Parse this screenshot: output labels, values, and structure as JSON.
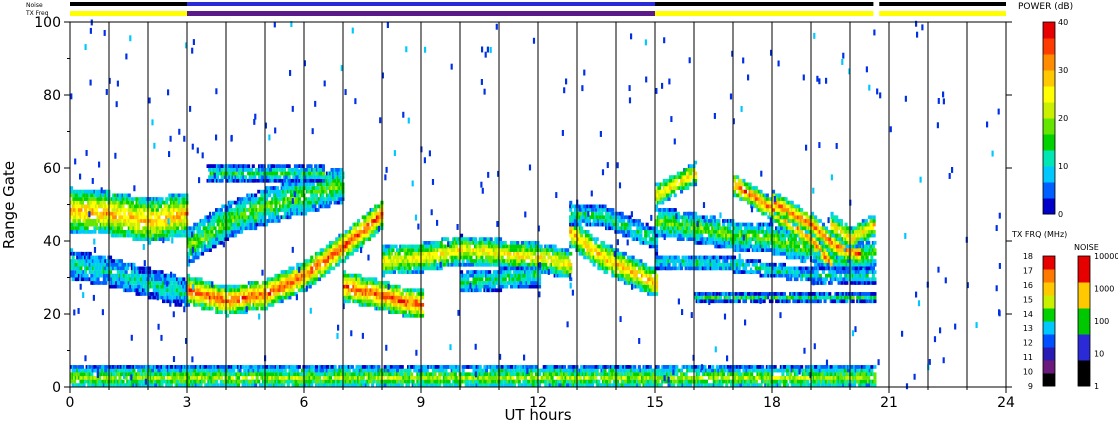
{
  "chart_data": {
    "type": "heatmap",
    "xlabel": "UT hours",
    "ylabel": "Range Gate",
    "xlim": [
      0,
      24
    ],
    "ylim": [
      0,
      100
    ],
    "x_ticks": [
      "0",
      "3",
      "6",
      "9",
      "12",
      "15",
      "18",
      "21",
      "24"
    ],
    "x_tick_values": [
      0,
      3,
      6,
      9,
      12,
      15,
      18,
      21,
      24
    ],
    "y_ticks": [
      "0",
      "20",
      "40",
      "60",
      "80",
      "100"
    ],
    "y_tick_values": [
      0,
      20,
      40,
      60,
      80,
      100
    ],
    "vertical_grid_hours": [
      1,
      2,
      3,
      4,
      5,
      6,
      7,
      8,
      9,
      10,
      11,
      12,
      13,
      14,
      15,
      16,
      17,
      18,
      19,
      20,
      21,
      22,
      23
    ],
    "strip_labels": {
      "noise": "Noise",
      "txfreq": "TX Freq"
    },
    "noise_strip": [
      {
        "start": 0,
        "end": 3,
        "color": "#000000"
      },
      {
        "start": 3,
        "end": 15,
        "color": "#2a2ad6"
      },
      {
        "start": 15,
        "end": 20.6,
        "color": "#000000"
      },
      {
        "start": 20.75,
        "end": 24,
        "color": "#000000"
      }
    ],
    "txfreq_strip": [
      {
        "start": 0,
        "end": 3,
        "color": "#ffff00"
      },
      {
        "start": 3,
        "end": 15,
        "color": "#5a1a8a"
      },
      {
        "start": 15,
        "end": 20.6,
        "color": "#ffff00"
      },
      {
        "start": 20.75,
        "end": 24,
        "color": "#ffff00"
      }
    ],
    "power_scale": {
      "label": "POWER (dB)",
      "ticks": [
        "0",
        "10",
        "20",
        "30",
        "40"
      ],
      "tick_values": [
        0,
        10,
        20,
        30,
        40
      ],
      "range": [
        0,
        40
      ],
      "colors": [
        "#0000c8",
        "#0060ff",
        "#00c8ff",
        "#00e6b4",
        "#00d200",
        "#64e600",
        "#c8f000",
        "#ffff00",
        "#ffc800",
        "#ff8c00",
        "#ff3c00",
        "#e60000"
      ]
    },
    "txfreq_scale": {
      "label": "TX FRQ (MHz)",
      "ticks": [
        "9",
        "10",
        "11",
        "12",
        "13",
        "14",
        "15",
        "16",
        "17",
        "18"
      ],
      "colors": [
        "#000000",
        "#6a1a7a",
        "#2a1ab4",
        "#0050ff",
        "#00c8ff",
        "#00d200",
        "#c8f000",
        "#ffc800",
        "#ff7800",
        "#e60000"
      ]
    },
    "noise_scale": {
      "label": "NOISE",
      "ticks": [
        "1",
        "10",
        "100",
        "1000",
        "10000"
      ],
      "colors": [
        "#000000",
        "#2a2ad6",
        "#00c800",
        "#ffc800",
        "#e60000"
      ]
    },
    "echo_bands": [
      {
        "desc": "morning band",
        "points": [
          [
            0,
            48
          ],
          [
            1,
            47
          ],
          [
            2,
            45
          ],
          [
            3,
            47
          ]
        ],
        "width": 6,
        "peak": 30
      },
      {
        "desc": "morning low band",
        "points": [
          [
            0,
            33
          ],
          [
            1,
            31
          ],
          [
            2,
            28
          ],
          [
            3,
            25
          ]
        ],
        "width": 4,
        "peak": 12
      },
      {
        "desc": "dawn arc",
        "points": [
          [
            3,
            26
          ],
          [
            4,
            23
          ],
          [
            5,
            25
          ],
          [
            6,
            30
          ],
          [
            7,
            38
          ],
          [
            8,
            47
          ]
        ],
        "width": 4,
        "peak": 36
      },
      {
        "desc": "dawn upper band",
        "points": [
          [
            3,
            38
          ],
          [
            4,
            45
          ],
          [
            5,
            49
          ],
          [
            6,
            52
          ],
          [
            7,
            55
          ]
        ],
        "width": 5,
        "peak": 18
      },
      {
        "desc": "dawn upper edge",
        "points": [
          [
            3.5,
            58
          ],
          [
            5,
            58
          ],
          [
            6.5,
            58
          ]
        ],
        "width": 2,
        "peak": 15
      },
      {
        "desc": "patch near 8 UT",
        "points": [
          [
            7,
            27
          ],
          [
            7.8,
            25
          ],
          [
            8.5,
            23
          ],
          [
            9,
            22
          ]
        ],
        "width": 4,
        "peak": 36
      },
      {
        "desc": "midday band",
        "points": [
          [
            8,
            34
          ],
          [
            9,
            35
          ],
          [
            10,
            37
          ],
          [
            11,
            36
          ],
          [
            12,
            35
          ],
          [
            12.8,
            33
          ]
        ],
        "width": 4,
        "peak": 26
      },
      {
        "desc": "midday lower band",
        "points": [
          [
            10,
            28
          ],
          [
            11,
            29
          ],
          [
            12,
            30
          ]
        ],
        "width": 3,
        "peak": 14
      },
      {
        "desc": "afternoon descending",
        "points": [
          [
            12.8,
            42
          ],
          [
            13.5,
            36
          ],
          [
            14.2,
            32
          ],
          [
            15,
            28
          ]
        ],
        "width": 4,
        "peak": 30
      },
      {
        "desc": "afternoon upper",
        "points": [
          [
            12.8,
            47
          ],
          [
            13.7,
            46
          ],
          [
            15,
            40
          ]
        ],
        "width": 3,
        "peak": 14
      },
      {
        "desc": "evening upper",
        "points": [
          [
            15,
            52
          ],
          [
            15.5,
            55
          ],
          [
            16,
            58
          ]
        ],
        "width": 3,
        "peak": 28
      },
      {
        "desc": "evening band",
        "points": [
          [
            15,
            45
          ],
          [
            16,
            43
          ],
          [
            17,
            41
          ],
          [
            18,
            40
          ],
          [
            19,
            37
          ],
          [
            20,
            35
          ],
          [
            20.6,
            36
          ]
        ],
        "width": 4,
        "peak": 18
      },
      {
        "desc": "evening streak a",
        "points": [
          [
            17,
            55
          ],
          [
            18,
            48
          ],
          [
            19,
            40
          ],
          [
            19.5,
            33
          ]
        ],
        "width": 3,
        "peak": 34
      },
      {
        "desc": "evening streak b",
        "points": [
          [
            18,
            50
          ],
          [
            19,
            44
          ],
          [
            19.6,
            38
          ],
          [
            20.2,
            36
          ]
        ],
        "width": 3,
        "peak": 34
      },
      {
        "desc": "evening streak c",
        "points": [
          [
            19.5,
            44
          ],
          [
            20,
            40
          ],
          [
            20.6,
            44
          ]
        ],
        "width": 3,
        "peak": 28
      },
      {
        "desc": "evening low line",
        "points": [
          [
            15,
            34
          ],
          [
            17,
            33
          ],
          [
            19,
            30
          ],
          [
            20.6,
            30
          ]
        ],
        "width": 2,
        "peak": 12
      },
      {
        "desc": "evening floor line",
        "points": [
          [
            16,
            24
          ],
          [
            18,
            24
          ],
          [
            20.6,
            24
          ]
        ],
        "width": 1,
        "peak": 14
      },
      {
        "desc": "ground scatter",
        "points": [
          [
            0,
            2
          ],
          [
            5,
            2
          ],
          [
            10,
            2
          ],
          [
            15,
            2
          ],
          [
            20.6,
            2
          ]
        ],
        "width": 3,
        "peak": 20
      }
    ]
  }
}
